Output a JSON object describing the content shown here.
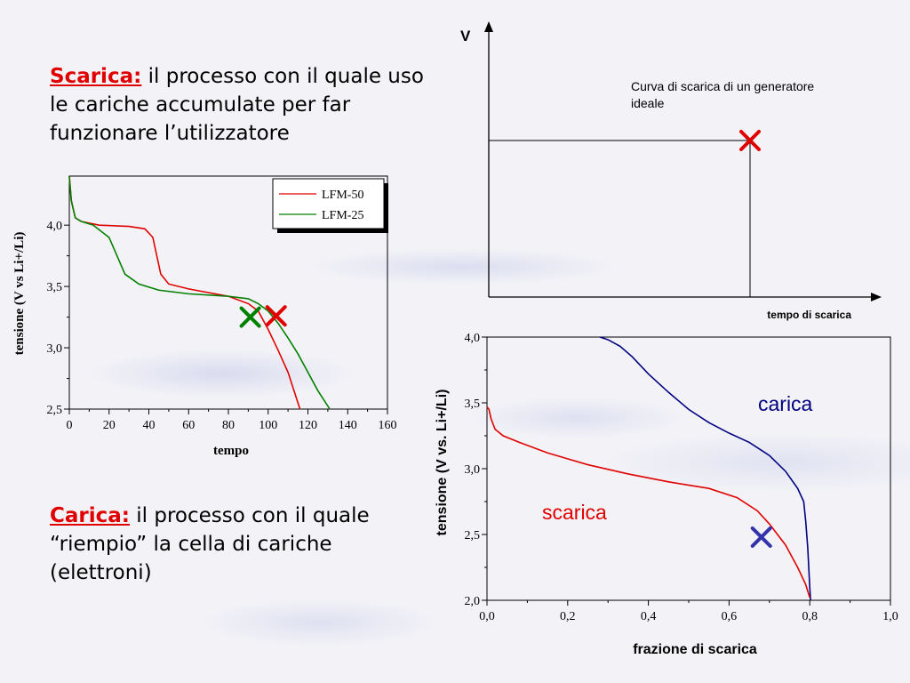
{
  "scarica_text": {
    "keyword": "Scarica:",
    "body": " il processo con il quale uso le cariche accumulate per far funzionare l’utilizzatore"
  },
  "carica_text": {
    "keyword": "Carica:",
    "body": " il processo con il quale “riempio” la cella di cariche (elettroni)"
  },
  "chart_data": [
    {
      "type": "line",
      "xlabel": "tempo",
      "ylabel": "tensione (V vs Li+/Li)",
      "xlim": [
        0,
        160
      ],
      "ylim": [
        2.5,
        4.4
      ],
      "xticks": [
        "0",
        "20",
        "40",
        "60",
        "80",
        "100",
        "120",
        "140",
        "160"
      ],
      "yticks": [
        "2,5",
        "3,0",
        "3,5",
        "4,0"
      ],
      "legend": "top-right",
      "series": [
        {
          "name": "LFM-50",
          "color": "#e00000",
          "x": [
            0,
            1,
            3,
            6,
            15,
            30,
            38,
            42,
            44,
            46,
            50,
            60,
            80,
            90,
            95,
            100,
            105,
            110,
            113,
            116
          ],
          "y": [
            4.4,
            4.2,
            4.06,
            4.03,
            4.0,
            3.99,
            3.97,
            3.9,
            3.75,
            3.6,
            3.52,
            3.48,
            3.42,
            3.36,
            3.3,
            3.15,
            2.98,
            2.8,
            2.65,
            2.5
          ]
        },
        {
          "name": "LFM-25",
          "color": "#008000",
          "x": [
            0,
            1,
            3,
            6,
            12,
            20,
            24,
            28,
            35,
            45,
            60,
            80,
            90,
            95,
            100,
            105,
            110,
            115,
            120,
            125,
            131
          ],
          "y": [
            4.4,
            4.2,
            4.06,
            4.03,
            4.0,
            3.9,
            3.75,
            3.6,
            3.52,
            3.47,
            3.44,
            3.42,
            3.4,
            3.36,
            3.3,
            3.2,
            3.08,
            2.95,
            2.8,
            2.65,
            2.5
          ]
        }
      ],
      "markers": [
        {
          "label": "X",
          "color": "#008000",
          "x": 91,
          "y": 3.25
        },
        {
          "label": "X",
          "color": "#e00000",
          "x": 104,
          "y": 3.26
        }
      ]
    },
    {
      "type": "line",
      "xlabel": "tempo di scarica",
      "ylabel": "V",
      "annotation": "Curva di scarica di un generatore ideale",
      "series": [
        {
          "name": "",
          "color": "#000000",
          "x": [
            0,
            1,
            1
          ],
          "y": [
            1,
            1,
            0
          ]
        }
      ],
      "markers": [
        {
          "label": "X",
          "color": "#e00000",
          "x": 1,
          "y": 1
        }
      ]
    },
    {
      "type": "line",
      "xlabel": "frazione di scarica",
      "ylabel": "tensione (V vs. Li+/Li)",
      "xlim": [
        0,
        1.0
      ],
      "ylim": [
        2.0,
        4.0
      ],
      "xticks": [
        "0,0",
        "0,2",
        "0,4",
        "0,6",
        "0,8",
        "1,0"
      ],
      "yticks": [
        "2,0",
        "2,5",
        "3,0",
        "3,5",
        "4,0"
      ],
      "series": [
        {
          "name": "carica",
          "color": "#000080",
          "x": [
            0.28,
            0.3,
            0.33,
            0.36,
            0.4,
            0.45,
            0.5,
            0.55,
            0.6,
            0.65,
            0.7,
            0.74,
            0.77,
            0.785,
            0.79,
            0.795,
            0.8,
            0.802
          ],
          "y": [
            4.0,
            3.98,
            3.93,
            3.85,
            3.72,
            3.58,
            3.45,
            3.35,
            3.27,
            3.2,
            3.1,
            2.98,
            2.85,
            2.75,
            2.6,
            2.4,
            2.1,
            2.0
          ]
        },
        {
          "name": "scarica",
          "color": "#e00000",
          "x": [
            0.0,
            0.005,
            0.01,
            0.02,
            0.04,
            0.08,
            0.15,
            0.25,
            0.35,
            0.45,
            0.55,
            0.62,
            0.67,
            0.7,
            0.74,
            0.77,
            0.79,
            0.8
          ],
          "y": [
            3.47,
            3.45,
            3.38,
            3.3,
            3.25,
            3.2,
            3.12,
            3.03,
            2.96,
            2.9,
            2.85,
            2.78,
            2.68,
            2.58,
            2.42,
            2.25,
            2.12,
            2.02
          ]
        }
      ],
      "series_labels": [
        {
          "text": "carica",
          "color": "#000080"
        },
        {
          "text": "scarica",
          "color": "#e00000"
        }
      ],
      "markers": [
        {
          "label": "X",
          "color": "#3333aa",
          "x": 0.68,
          "y": 2.48
        }
      ]
    }
  ]
}
